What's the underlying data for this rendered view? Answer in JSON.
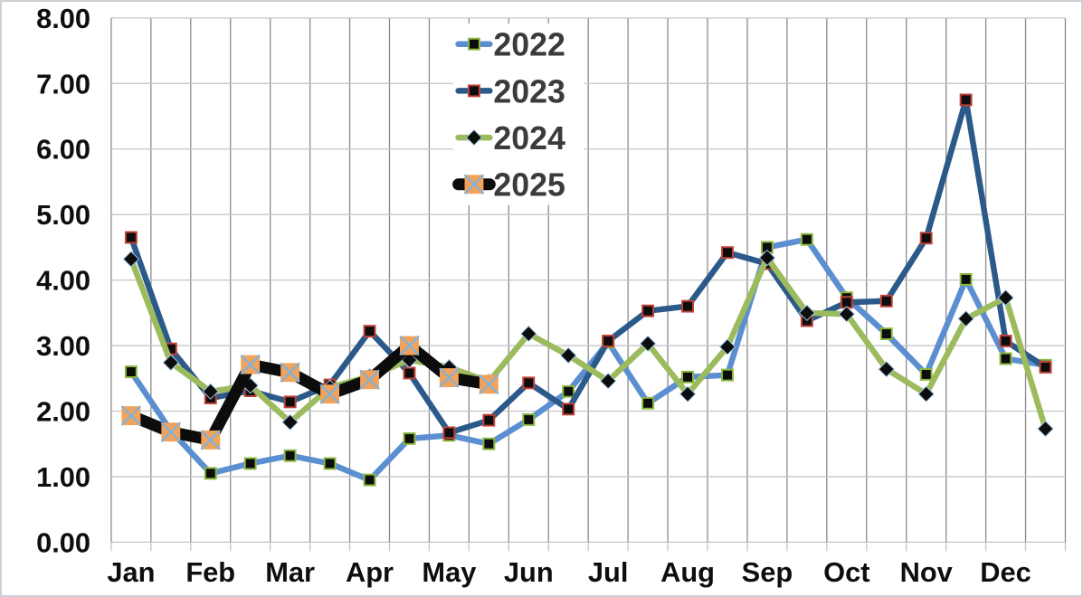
{
  "chart_data": {
    "type": "line",
    "title": "",
    "description": "Semi-monthly line chart comparing four yearly series, Jan through Dec, two data points per month",
    "y_axis": {
      "min": 0,
      "max": 8,
      "step": 1,
      "tick_labels": [
        "0.00",
        "1.00",
        "2.00",
        "3.00",
        "4.00",
        "5.00",
        "6.00",
        "7.00",
        "8.00"
      ]
    },
    "x_axis": {
      "months": [
        "Jan",
        "Feb",
        "Mar",
        "Apr",
        "May",
        "Jun",
        "Jul",
        "Aug",
        "Sep",
        "Oct",
        "Nov",
        "Dec"
      ],
      "points_per_month": 2,
      "total_points": 24
    },
    "grid": true,
    "legend": {
      "position": "top-center",
      "entries": [
        "2022",
        "2023",
        "2024",
        "2025"
      ]
    },
    "series": [
      {
        "name": "2022",
        "color": "#5b8fd1",
        "line_width": 6.5,
        "marker": {
          "shape": "square",
          "fill": "#0d0d0d",
          "outline": "#8cb83f",
          "size": 12
        },
        "values": [
          2.6,
          1.7,
          1.05,
          1.2,
          1.32,
          1.2,
          0.95,
          1.58,
          1.63,
          1.5,
          1.87,
          2.3,
          3.05,
          2.12,
          2.52,
          2.55,
          4.5,
          4.62,
          3.73,
          3.18,
          2.56,
          4.01,
          2.8,
          2.7
        ]
      },
      {
        "name": "2023",
        "color": "#2b5a8a",
        "line_width": 6.5,
        "marker": {
          "shape": "square",
          "fill": "#0d0d0d",
          "outline": "#bf4138",
          "size": 12
        },
        "values": [
          4.65,
          2.95,
          2.2,
          2.31,
          2.14,
          2.4,
          3.22,
          2.58,
          1.67,
          1.86,
          2.43,
          2.03,
          3.07,
          3.53,
          3.6,
          4.42,
          4.25,
          3.38,
          3.66,
          3.68,
          4.64,
          6.75,
          3.07,
          2.67
        ]
      },
      {
        "name": "2024",
        "color": "#9cbb5d",
        "line_width": 6.5,
        "marker": {
          "shape": "diamond",
          "fill": "#0d0d0d",
          "outline": "#9dc3e6",
          "size": 17
        },
        "values": [
          4.32,
          2.74,
          2.3,
          2.39,
          1.83,
          2.36,
          2.53,
          2.78,
          2.67,
          2.45,
          3.18,
          2.85,
          2.46,
          3.03,
          2.26,
          2.98,
          4.34,
          3.5,
          3.48,
          2.64,
          2.26,
          3.41,
          3.73,
          1.73
        ]
      },
      {
        "name": "2025",
        "color": "#0c0c0c",
        "line_width": 13,
        "marker": {
          "shape": "x-square",
          "fill": "#f1a35c",
          "outline": "#7fb2dd",
          "size": 21
        },
        "values": [
          1.93,
          1.68,
          1.56,
          2.71,
          2.59,
          2.26,
          2.48,
          3.0,
          2.51,
          2.41
        ]
      }
    ],
    "colors": {
      "background": "#ffffff",
      "border": "#ccd1d6",
      "grid_vertical": "#8a8a8a",
      "grid_horizontal": "#c6c6c6",
      "axis_tick": "#c6c6c6",
      "axis_text": "#0e0e0e",
      "legend_text": "#3b3b3b"
    }
  }
}
